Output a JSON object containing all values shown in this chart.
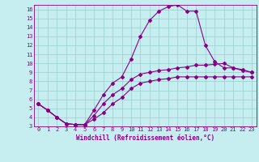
{
  "title": "",
  "xlabel": "Windchill (Refroidissement éolien,°C)",
  "ylabel": "",
  "xlim": [
    -0.5,
    23.5
  ],
  "ylim": [
    3,
    16.5
  ],
  "xticks": [
    0,
    1,
    2,
    3,
    4,
    5,
    6,
    7,
    8,
    9,
    10,
    11,
    12,
    13,
    14,
    15,
    16,
    17,
    18,
    19,
    20,
    21,
    22,
    23
  ],
  "yticks": [
    3,
    4,
    5,
    6,
    7,
    8,
    9,
    10,
    11,
    12,
    13,
    14,
    15,
    16
  ],
  "bg_color": "#c6eef0",
  "line_color": "#880088",
  "grid_color": "#99cccc",
  "lines": [
    {
      "x": [
        0,
        1,
        2,
        3,
        4,
        5,
        6,
        7,
        8,
        9,
        10,
        11,
        12,
        13,
        14,
        15,
        16,
        17,
        18,
        19,
        20,
        21,
        22,
        23
      ],
      "y": [
        5.5,
        4.8,
        4.0,
        3.3,
        3.2,
        3.2,
        4.8,
        6.5,
        7.8,
        8.5,
        10.5,
        13.0,
        14.8,
        15.8,
        16.3,
        16.5,
        15.8,
        15.8,
        12.0,
        10.2,
        9.5,
        9.5,
        9.2,
        9.0
      ]
    },
    {
      "x": [
        0,
        1,
        2,
        3,
        4,
        5,
        6,
        7,
        8,
        9,
        10,
        11,
        12,
        13,
        14,
        15,
        16,
        17,
        18,
        19,
        20,
        21,
        22,
        23
      ],
      "y": [
        5.5,
        4.8,
        4.0,
        3.3,
        3.2,
        3.2,
        4.2,
        5.5,
        6.5,
        7.2,
        8.2,
        8.8,
        9.0,
        9.2,
        9.3,
        9.5,
        9.6,
        9.8,
        9.8,
        9.9,
        10.0,
        9.5,
        9.3,
        9.0
      ]
    },
    {
      "x": [
        0,
        1,
        2,
        3,
        4,
        5,
        6,
        7,
        8,
        9,
        10,
        11,
        12,
        13,
        14,
        15,
        16,
        17,
        18,
        19,
        20,
        21,
        22,
        23
      ],
      "y": [
        5.5,
        4.8,
        4.0,
        3.3,
        3.2,
        3.2,
        3.8,
        4.5,
        5.5,
        6.2,
        7.2,
        7.8,
        8.0,
        8.2,
        8.3,
        8.5,
        8.5,
        8.5,
        8.5,
        8.5,
        8.5,
        8.5,
        8.5,
        8.5
      ]
    }
  ],
  "marker": "D",
  "markersize": 2.0,
  "linewidth": 0.8,
  "tick_fontsize": 5.0,
  "label_fontsize": 5.5,
  "font_family": "monospace"
}
